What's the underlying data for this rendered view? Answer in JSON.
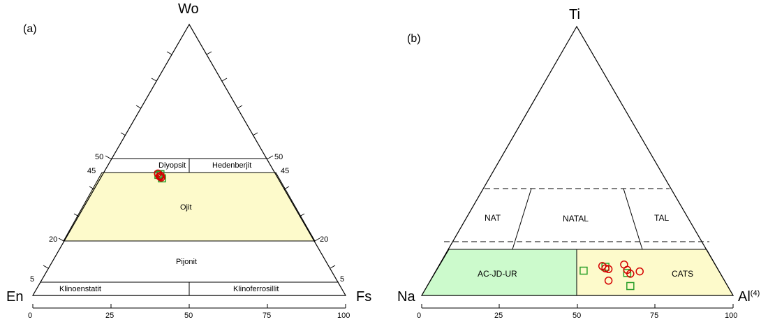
{
  "chart_data": [
    {
      "type": "ternary",
      "panel_label": "(a)",
      "apex": {
        "top": "Wo",
        "left": "En",
        "right": "Fs"
      },
      "fields": [
        "Diyopsit",
        "Hedenberjit",
        "Ojit",
        "Pijonit",
        "Klinoenstatit",
        "Klinoferrosillit"
      ],
      "side_ticks": [
        "50",
        "45",
        "20",
        "5"
      ],
      "bottom_axis_ticks": [
        "0",
        "25",
        "50",
        "75",
        "100"
      ],
      "fill_colors": {
        "ojit": "#fdfacb"
      },
      "series": [
        {
          "marker": "circle",
          "color": "#d40000",
          "points": [
            {
              "wo": 45,
              "en": 37.5,
              "fs": 17.5
            },
            {
              "wo": 44,
              "en": 37.5,
              "fs": 18.5
            },
            {
              "wo": 43.5,
              "en": 37.2,
              "fs": 19.3
            },
            {
              "wo": 44.2,
              "en": 37.0,
              "fs": 18.8
            },
            {
              "wo": 43.8,
              "en": 37.4,
              "fs": 18.8
            }
          ]
        },
        {
          "marker": "square",
          "color": "#2ca02c",
          "points": [
            {
              "wo": 44.5,
              "en": 37.6,
              "fs": 17.9
            },
            {
              "wo": 43.2,
              "en": 37.1,
              "fs": 19.7
            },
            {
              "wo": 44.8,
              "en": 36.8,
              "fs": 18.4
            }
          ]
        }
      ]
    },
    {
      "type": "ternary",
      "panel_label": "(b)",
      "apex": {
        "top": "Ti",
        "left": "Na",
        "right": "Al",
        "right_superscript": "(4)"
      },
      "fields": [
        "NAT",
        "NATAL",
        "TAL",
        "AC-JD-UR",
        "CATS"
      ],
      "bottom_axis_ticks": [
        "0",
        "25",
        "50",
        "75",
        "100"
      ],
      "fill_colors": {
        "ac_jd_ur": "#ccfacc",
        "cats": "#fdfacb"
      },
      "series": [
        {
          "marker": "circle",
          "color": "#d40000",
          "points": [
            {
              "x": 58,
              "y": 2.2
            },
            {
              "x": 59,
              "y": 1.6
            },
            {
              "x": 60,
              "y": 1.4
            },
            {
              "x": 65,
              "y": 2.6
            },
            {
              "x": 66,
              "y": 1.2
            },
            {
              "x": 67,
              "y": 0.2
            },
            {
              "x": 70,
              "y": 0.8
            },
            {
              "x": 60,
              "y": -1.6
            }
          ]
        },
        {
          "marker": "square",
          "color": "#2ca02c",
          "points": [
            {
              "x": 52,
              "y": 1.0
            },
            {
              "x": 59,
              "y": 2.0
            },
            {
              "x": 66,
              "y": 0.4
            },
            {
              "x": 67,
              "y": -3.0
            }
          ]
        }
      ]
    }
  ]
}
